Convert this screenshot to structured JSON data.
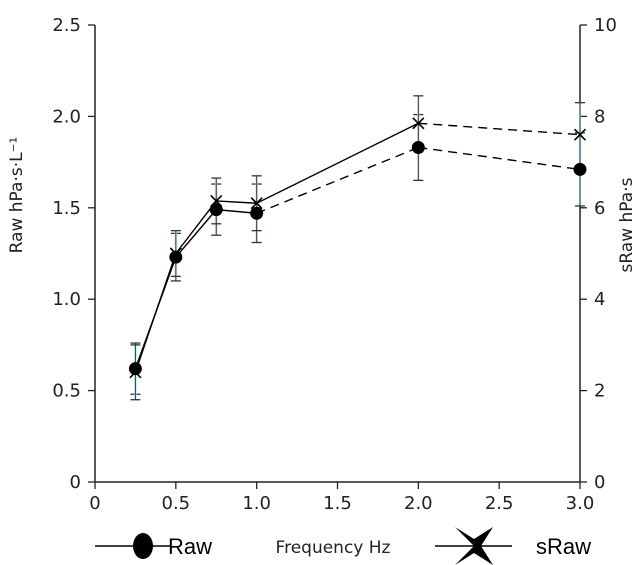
{
  "chart_data": {
    "type": "line",
    "x": [
      0.25,
      0.5,
      0.75,
      1.0,
      2.0,
      3.0
    ],
    "xlabel": "Frequency Hz",
    "ylabel_left": "Raw hPa·s·L⁻¹",
    "ylabel_right": "sRaw hPa·s",
    "xlim": [
      0,
      3.0
    ],
    "ylim_left": [
      0,
      2.5
    ],
    "ylim_right": [
      0,
      10
    ],
    "xticks": [
      "0",
      "0.5",
      "1.0",
      "1.5",
      "2.0",
      "2.5",
      "3.0"
    ],
    "yticks_left": [
      "0",
      "0.5",
      "1.0",
      "1.5",
      "2.0",
      "2.5"
    ],
    "yticks_right": [
      "0",
      "2",
      "4",
      "6",
      "8",
      "10"
    ],
    "grid": false,
    "legend_position": "bottom",
    "series": [
      {
        "name": "Raw",
        "axis": "left",
        "marker": "filled-circle",
        "values": [
          0.62,
          1.23,
          1.49,
          1.47,
          1.83,
          1.71
        ],
        "error": [
          0.14,
          0.13,
          0.14,
          0.16,
          0.18,
          0.2
        ],
        "line_style": [
          "solid",
          "solid",
          "solid",
          "dashed",
          "dashed"
        ]
      },
      {
        "name": "sRaw",
        "axis": "right",
        "marker": "x",
        "values": [
          2.4,
          5.0,
          6.15,
          6.1,
          7.85,
          7.6
        ],
        "error": [
          0.6,
          0.5,
          0.5,
          0.6,
          0.6,
          0.7
        ],
        "line_style": [
          "solid",
          "solid",
          "solid",
          "solid",
          "dashed"
        ]
      }
    ],
    "legend": {
      "raw_label": "Raw",
      "sraw_label": "sRaw"
    }
  },
  "colors": {
    "axis": "#222222",
    "series": "#000000",
    "errorbar_tint": "#aee0ee"
  }
}
